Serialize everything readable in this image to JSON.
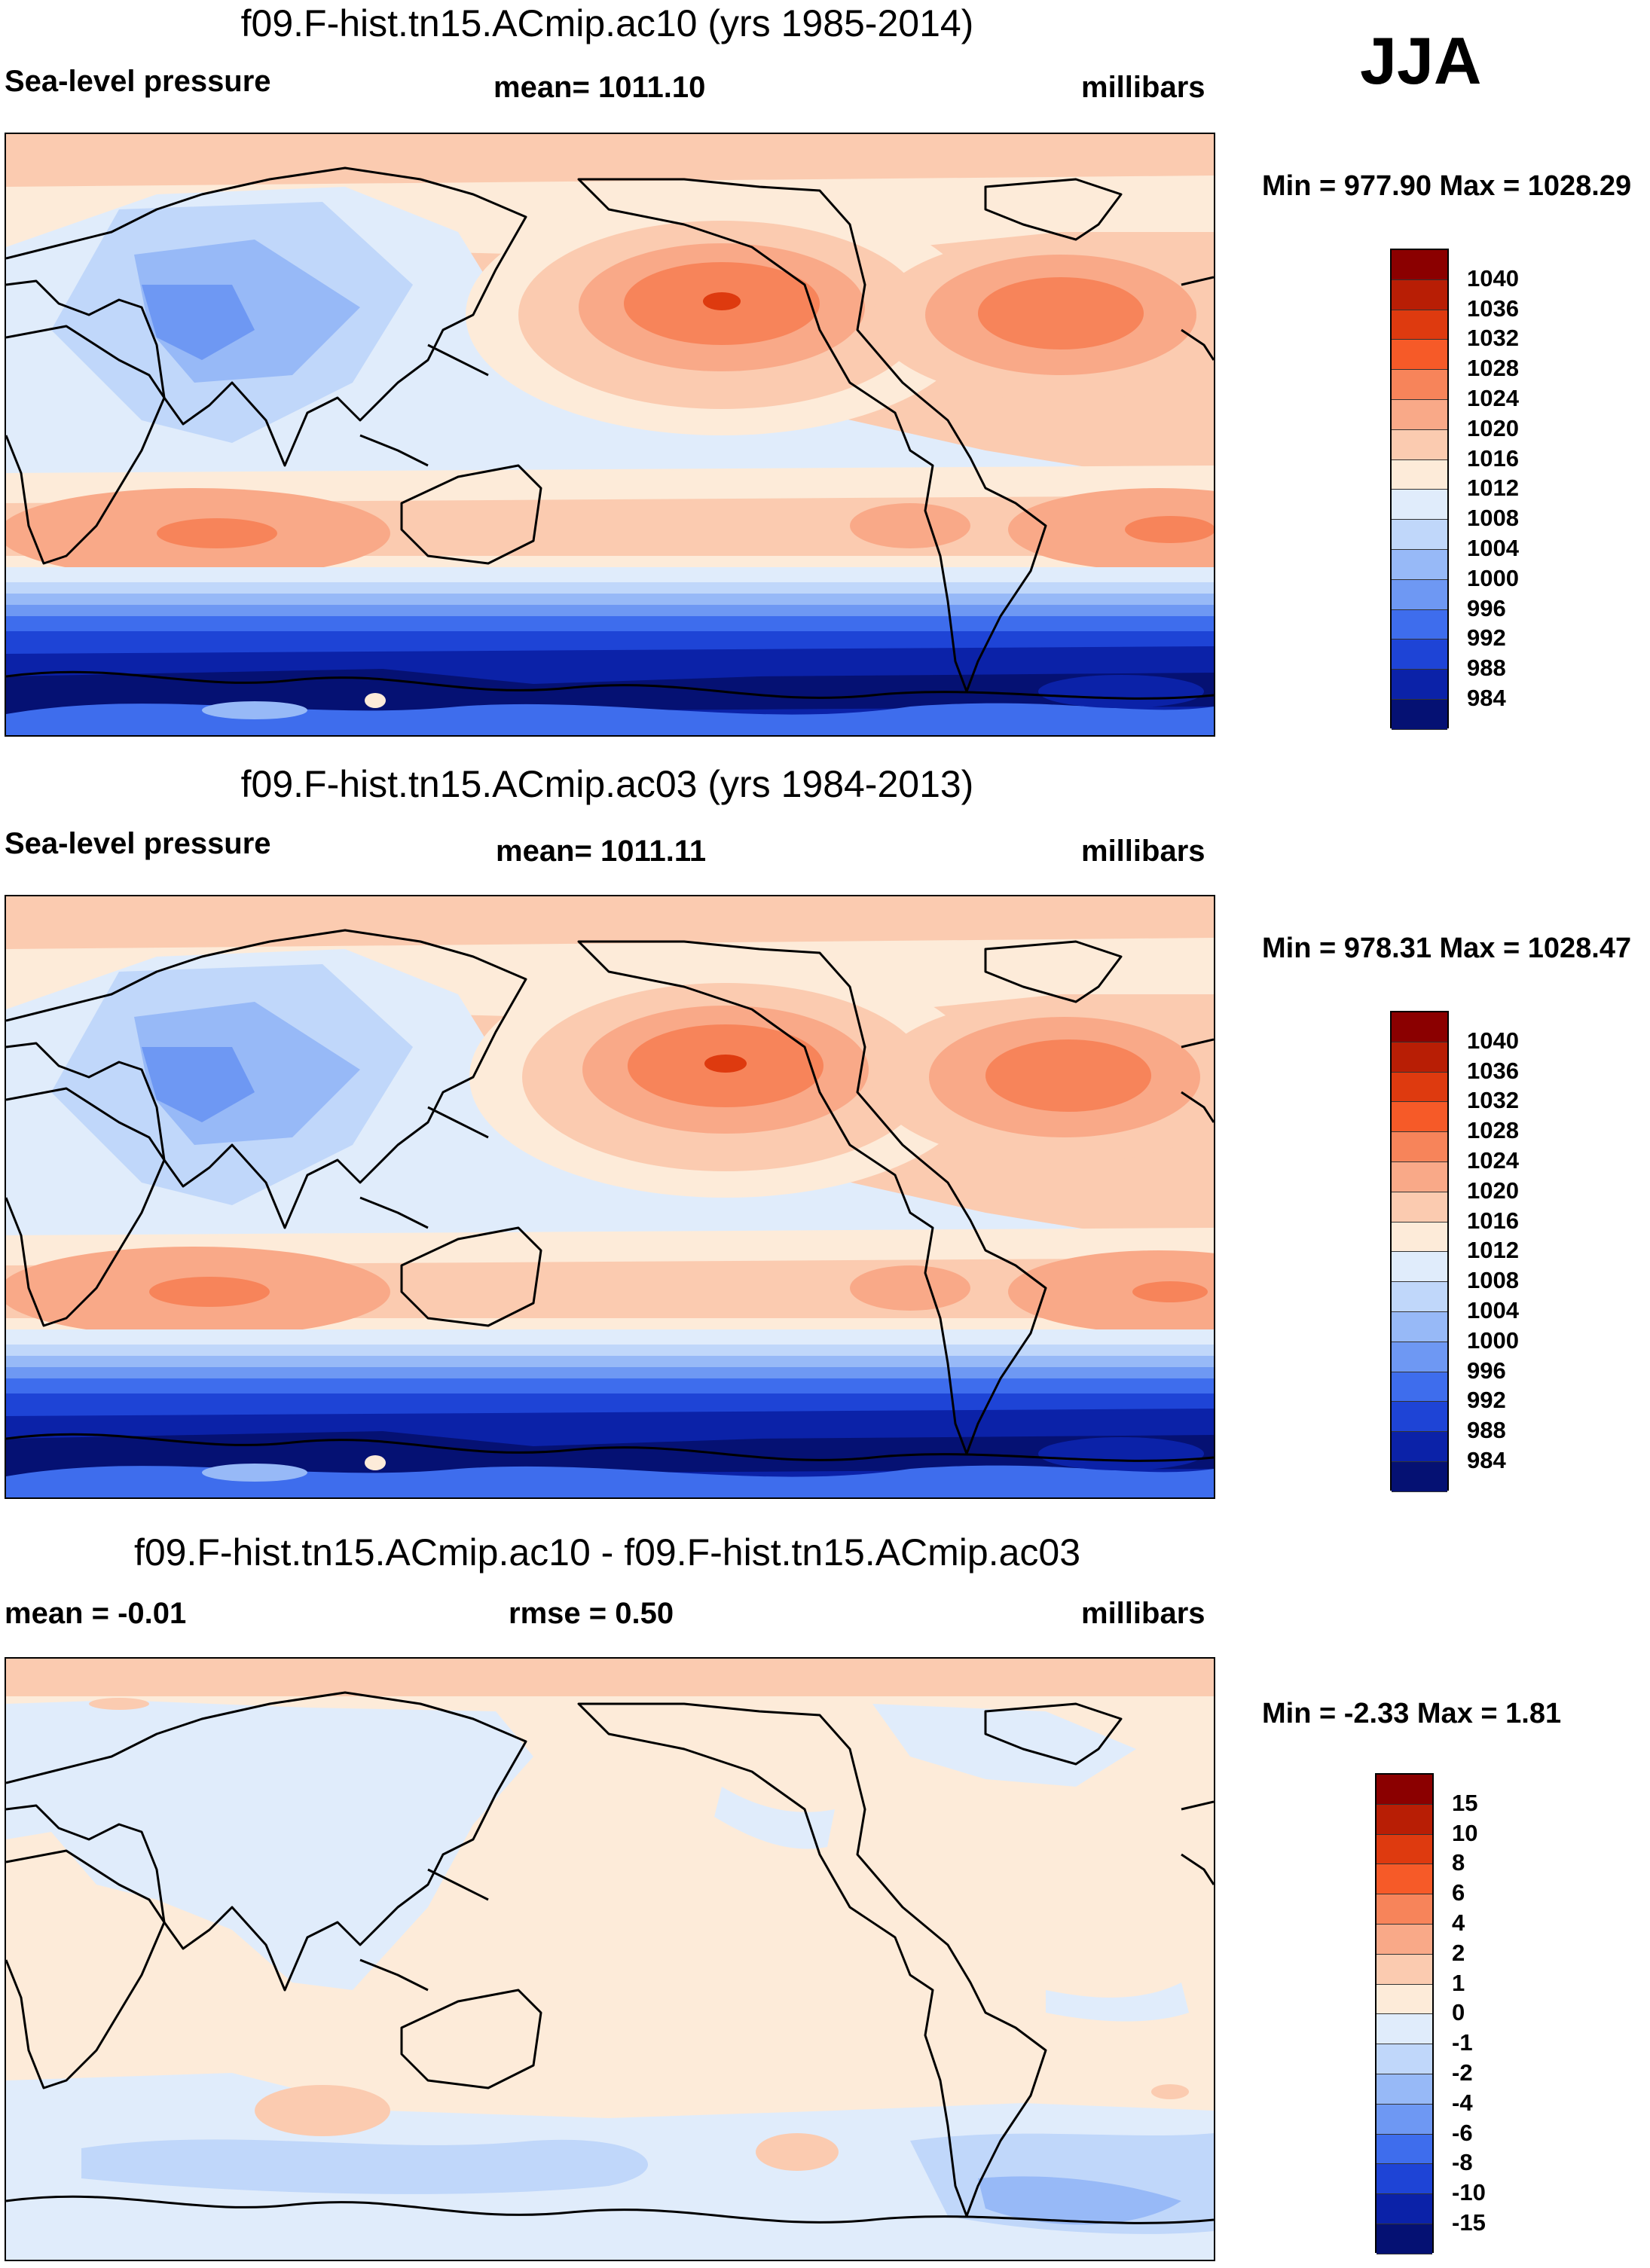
{
  "season": "JJA",
  "panels": [
    {
      "title": "f09.F-hist.tn15.ACmip.ac10 (yrs 1985-2014)",
      "left_label": "Sea-level pressure",
      "center_label": "mean= 1011.10",
      "right_label": "millibars",
      "minmax": "Min = 977.90 Max = 1028.29"
    },
    {
      "title": "f09.F-hist.tn15.ACmip.ac03 (yrs 1984-2013)",
      "left_label": "Sea-level pressure",
      "center_label": "mean= 1011.11",
      "right_label": "millibars",
      "minmax": "Min = 978.31 Max = 1028.47"
    },
    {
      "title": "f09.F-hist.tn15.ACmip.ac10 - f09.F-hist.tn15.ACmip.ac03",
      "left_label": "mean =  -0.01",
      "center_label": "rmse =   0.50",
      "right_label": "millibars",
      "minmax": "Min =  -2.33 Max =   1.81"
    }
  ],
  "colorbars": {
    "slp": {
      "labels": [
        "1040",
        "1036",
        "1032",
        "1028",
        "1024",
        "1020",
        "1016",
        "1012",
        "1008",
        "1004",
        "1000",
        "996",
        "992",
        "988",
        "984"
      ],
      "colors": [
        "#8b0000",
        "#b81e05",
        "#de3a0f",
        "#f65a28",
        "#f7845a",
        "#f9a988",
        "#fbcbb0",
        "#fdebd9",
        "#e0ecfb",
        "#c0d7fa",
        "#97b9f7",
        "#6e98f3",
        "#3e6ded",
        "#1e44d6",
        "#0b22a8",
        "#051173"
      ]
    },
    "diff": {
      "labels": [
        "15",
        "10",
        "8",
        "6",
        "4",
        "2",
        "1",
        "0",
        "-1",
        "-2",
        "-4",
        "-6",
        "-8",
        "-10",
        "-15"
      ],
      "colors": [
        "#8b0000",
        "#b81e05",
        "#de3a0f",
        "#f65a28",
        "#f7845a",
        "#f9a988",
        "#fbcbb0",
        "#fdebd9",
        "#e0ecfb",
        "#c0d7fa",
        "#97b9f7",
        "#6e98f3",
        "#3e6ded",
        "#1e44d6",
        "#0b22a8",
        "#051173"
      ]
    }
  },
  "chart_data": [
    {
      "type": "heatmap",
      "title": "f09.F-hist.tn15.ACmip.ac10 (yrs 1985-2014)",
      "variable": "Sea-level pressure",
      "units": "millibars",
      "mean": 1011.1,
      "min": 977.9,
      "max": 1028.29,
      "levels": [
        984,
        988,
        992,
        996,
        1000,
        1004,
        1008,
        1012,
        1016,
        1020,
        1024,
        1028,
        1032,
        1036,
        1040
      ]
    },
    {
      "type": "heatmap",
      "title": "f09.F-hist.tn15.ACmip.ac03 (yrs 1984-2013)",
      "variable": "Sea-level pressure",
      "units": "millibars",
      "mean": 1011.11,
      "min": 978.31,
      "max": 1028.47,
      "levels": [
        984,
        988,
        992,
        996,
        1000,
        1004,
        1008,
        1012,
        1016,
        1020,
        1024,
        1028,
        1032,
        1036,
        1040
      ]
    },
    {
      "type": "heatmap",
      "title": "f09.F-hist.tn15.ACmip.ac10 - f09.F-hist.tn15.ACmip.ac03",
      "units": "millibars",
      "mean": -0.01,
      "rmse": 0.5,
      "min": -2.33,
      "max": 1.81,
      "levels": [
        -15,
        -10,
        -8,
        -6,
        -4,
        -2,
        -1,
        0,
        1,
        2,
        4,
        6,
        8,
        10,
        15
      ]
    }
  ]
}
